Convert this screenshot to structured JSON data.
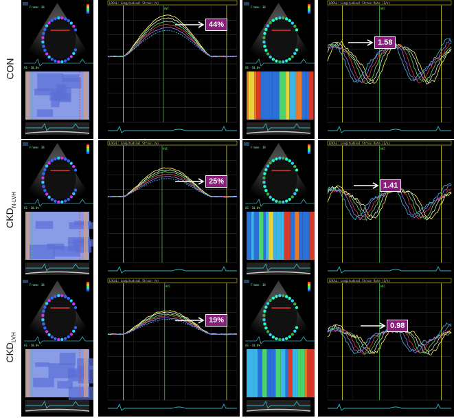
{
  "rows": [
    {
      "label_main": "CON",
      "label_sub": "",
      "strain_value": "44%",
      "rate_value": "1.58"
    },
    {
      "label_main": "CKD",
      "label_sub": "N-LVH",
      "strain_value": "25%",
      "rate_value": "1.41"
    },
    {
      "label_main": "CKD",
      "label_sub": "LVH",
      "strain_value": "19%",
      "rate_value": "0.98"
    }
  ],
  "panel_text": {
    "strain_header": "LOCAL: Longitudinal Strain (%)",
    "rate_header": "LOCAL: Longitudinal Strain Rate (1/s)",
    "gs_label": "GS -10.0%",
    "frame_label": "Frame: 38",
    "avc_label": "AVC"
  },
  "colors": {
    "badge": "#8a1e7c",
    "frame_yellow": "#c8c020",
    "marker_green": "#3fae3f",
    "ecg_cyan": "#2fb8c8"
  },
  "icons": [
    "right-arrow-icon"
  ]
}
